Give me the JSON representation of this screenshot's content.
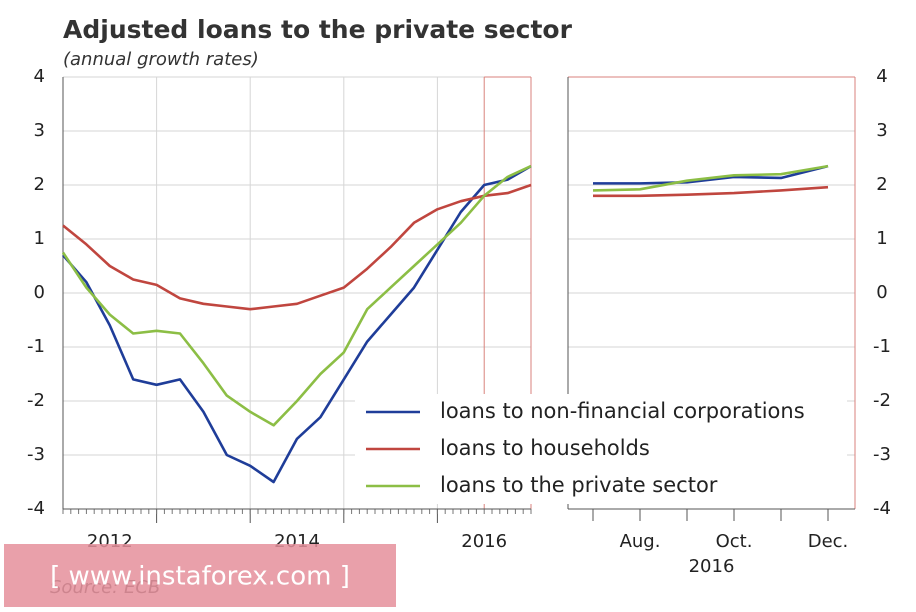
{
  "title": "Adjusted loans to the private sector",
  "subtitle": "(annual growth rates)",
  "source": "Source: ECB",
  "watermark": "[ www.instaforex.com ]",
  "chart_data": [
    {
      "type": "line",
      "x": [
        2012,
        2012.25,
        2012.5,
        2012.75,
        2013,
        2013.25,
        2013.5,
        2013.75,
        2014,
        2014.25,
        2014.5,
        2014.75,
        2015,
        2015.25,
        2015.5,
        2015.75,
        2016,
        2016.25,
        2016.5,
        2016.75,
        2017
      ],
      "xlim": [
        2012,
        2017
      ],
      "xticks": [
        {
          "value": 2012.5,
          "label": "2012"
        },
        {
          "value": 2014.5,
          "label": "2014"
        },
        {
          "value": 2016.5,
          "label": "2016"
        }
      ],
      "ylim": [
        -4,
        4
      ],
      "yticks": [
        -4,
        -3,
        -2,
        -1,
        0,
        1,
        2,
        3,
        4
      ],
      "grid": true,
      "legend": "lower right",
      "series": [
        {
          "name": "loans to non-financial corporations",
          "color": "#1f3d99",
          "values": [
            0.7,
            0.2,
            -0.6,
            -1.6,
            -1.7,
            -1.6,
            -2.2,
            -3.0,
            -3.2,
            -3.5,
            -2.7,
            -2.3,
            -1.6,
            -0.9,
            -0.4,
            0.1,
            0.8,
            1.5,
            2.0,
            2.1,
            2.35
          ]
        },
        {
          "name": "loans to households",
          "color": "#c0463f",
          "values": [
            1.25,
            0.9,
            0.5,
            0.25,
            0.15,
            -0.1,
            -0.2,
            -0.25,
            -0.3,
            -0.25,
            -0.2,
            -0.05,
            0.1,
            0.45,
            0.85,
            1.3,
            1.55,
            1.7,
            1.8,
            1.85,
            2.0
          ]
        },
        {
          "name": "loans to the private sector",
          "color": "#8cbe45",
          "values": [
            0.75,
            0.1,
            -0.4,
            -0.75,
            -0.7,
            -0.75,
            -1.3,
            -1.9,
            -2.2,
            -2.45,
            -2.0,
            -1.5,
            -1.1,
            -0.3,
            0.1,
            0.5,
            0.9,
            1.3,
            1.8,
            2.15,
            2.35
          ]
        }
      ]
    },
    {
      "type": "line",
      "categories": [
        null,
        "Aug.",
        null,
        "Oct.",
        null,
        "Dec."
      ],
      "x_group_label": "2016",
      "ylim": [
        -4,
        4
      ],
      "yticks": [
        -4,
        -3,
        -2,
        -1,
        0,
        1,
        2,
        3,
        4
      ],
      "grid": true,
      "series": [
        {
          "color": "#1f3d99",
          "values": [
            2.03,
            2.03,
            2.05,
            2.15,
            2.13,
            2.35
          ]
        },
        {
          "color": "#c0463f",
          "values": [
            1.8,
            1.8,
            1.82,
            1.85,
            1.9,
            1.96
          ]
        },
        {
          "color": "#8cbe45",
          "values": [
            1.9,
            1.92,
            2.08,
            2.18,
            2.2,
            2.35
          ]
        }
      ]
    }
  ]
}
